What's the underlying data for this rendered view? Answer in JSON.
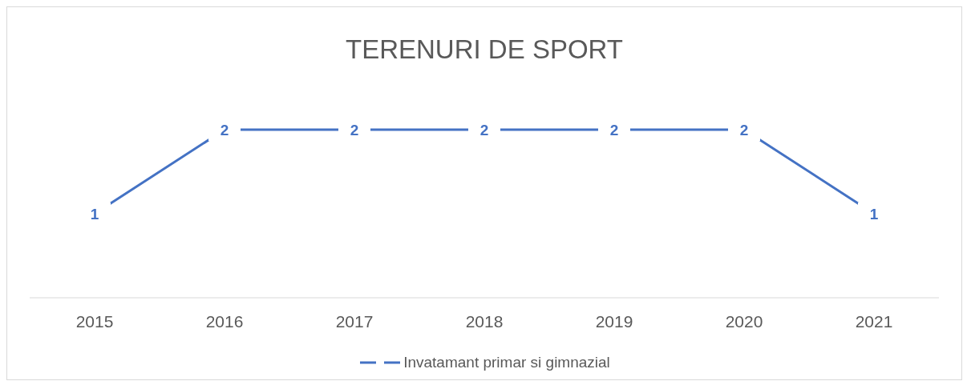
{
  "chart_data": {
    "type": "line",
    "title": "TERENURI DE SPORT",
    "categories": [
      "2015",
      "2016",
      "2017",
      "2018",
      "2019",
      "2020",
      "2021"
    ],
    "series": [
      {
        "name": "Invatamant primar si gimnazial",
        "color": "#4472c4",
        "values": [
          1,
          2,
          2,
          2,
          2,
          2,
          1
        ]
      }
    ],
    "data_labels": true,
    "legend": "bottom",
    "grid": false,
    "line_style": "solid"
  }
}
